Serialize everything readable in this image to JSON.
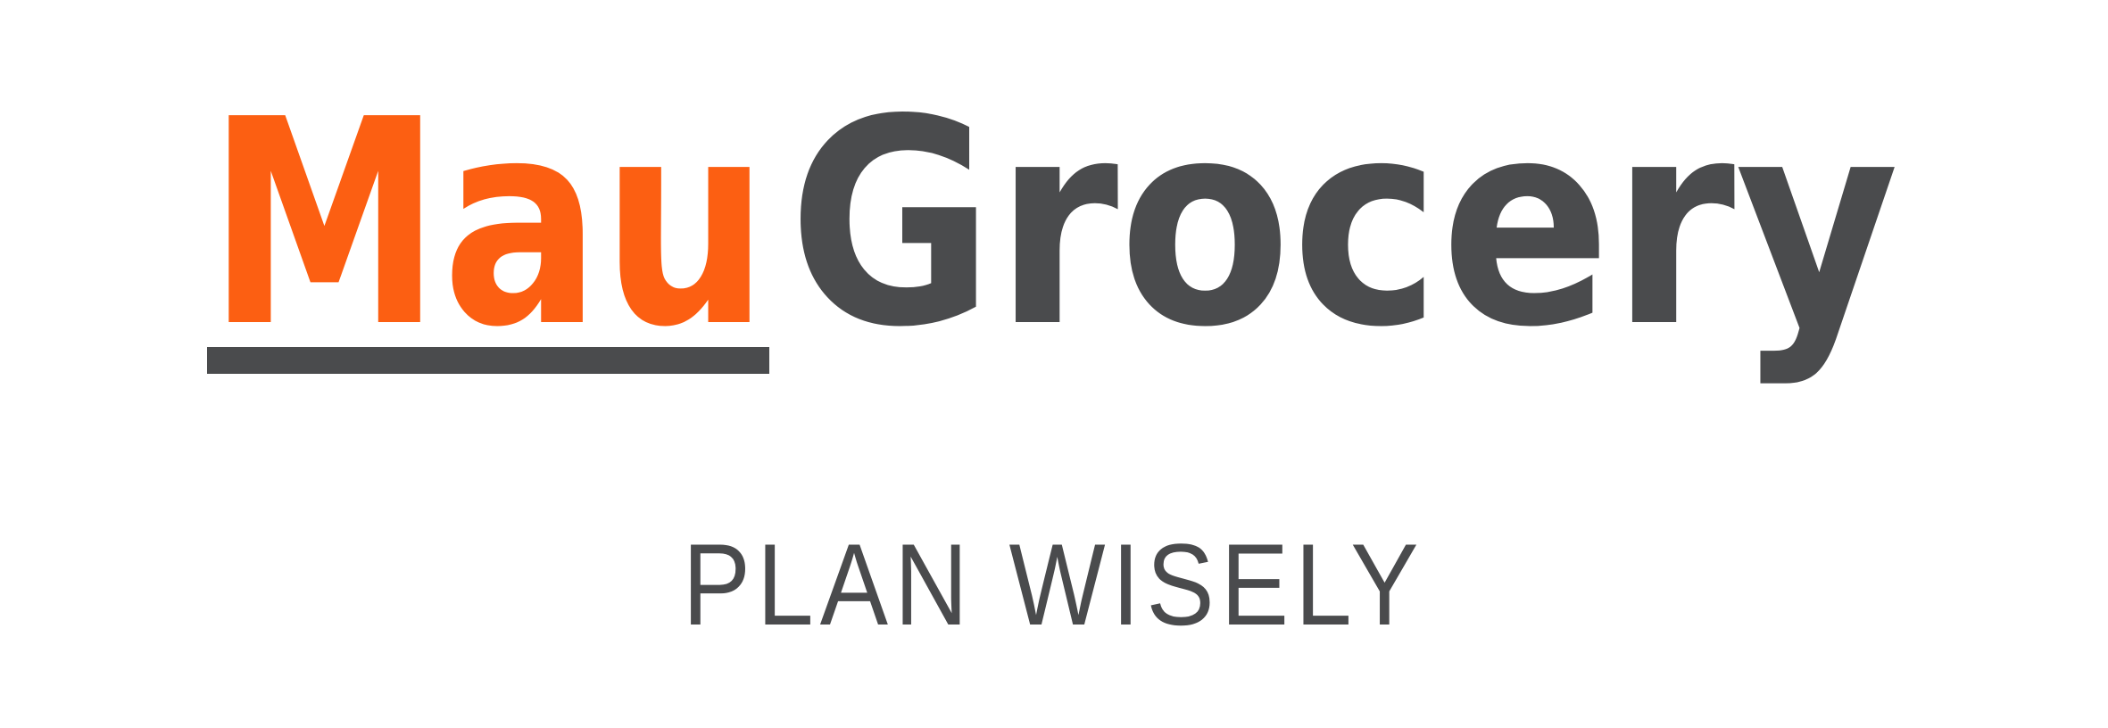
{
  "logo": {
    "part1": "Mau",
    "part2": "Grocery",
    "tagline": "PLAN WISELY",
    "colors": {
      "accent": "#fc5f12",
      "dark": "#4a4b4d",
      "background": "#ffffff"
    }
  }
}
